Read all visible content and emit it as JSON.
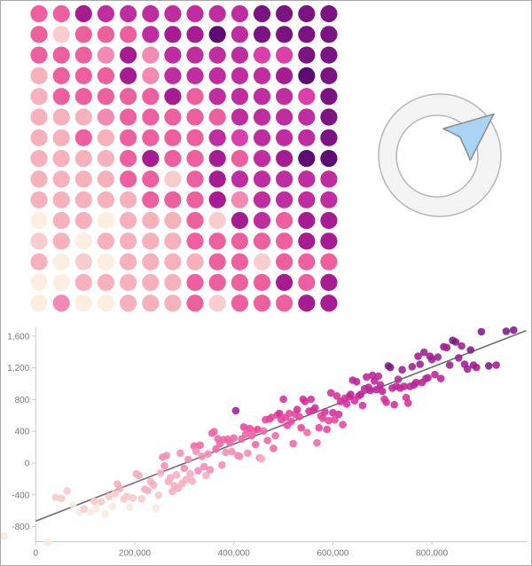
{
  "page": {
    "background": "#ffffff",
    "border_color": "#a9a9a9"
  },
  "compass_icon": {
    "name": "compass-arrow-icon",
    "ring_fill": "#f4f4f4",
    "ring_stroke": "#b9b9b9",
    "inner_fill": "#ffffff",
    "arrow_fill": "#aad4f4",
    "arrow_stroke": "#8f8f8f"
  },
  "chart_data": [
    {
      "type": "heatmap",
      "subtype": "dot-grid",
      "title": "",
      "rows": 15,
      "cols": 14,
      "legend": false,
      "grid": false,
      "layout_hint": "14x15 grid of colored dots; values increase from bottom-left (lightest pink) to top-right (darkest purple)",
      "palette": [
        "#fdeee2",
        "#f9cdcd",
        "#f6b1bd",
        "#f28ab3",
        "#ee5f9e",
        "#db3fa9",
        "#c02da1",
        "#a81c93",
        "#7c1383",
        "#5d0d71"
      ],
      "matrix": [
        [
          4,
          4,
          7,
          6,
          6,
          6,
          6,
          6,
          6,
          6,
          8,
          8,
          8,
          8
        ],
        [
          4,
          1,
          4,
          4,
          4,
          6,
          7,
          7,
          9,
          6,
          8,
          8,
          8,
          8
        ],
        [
          4,
          4,
          4,
          3,
          7,
          3,
          6,
          6,
          6,
          6,
          5,
          5,
          8,
          8
        ],
        [
          2,
          4,
          4,
          4,
          7,
          3,
          6,
          6,
          6,
          6,
          6,
          7,
          9,
          8
        ],
        [
          2,
          4,
          4,
          4,
          4,
          4,
          7,
          4,
          6,
          6,
          6,
          6,
          5,
          8
        ],
        [
          2,
          2,
          2,
          3,
          4,
          4,
          4,
          4,
          4,
          6,
          6,
          6,
          6,
          8
        ],
        [
          2,
          2,
          4,
          2,
          4,
          4,
          4,
          4,
          6,
          5,
          6,
          6,
          6,
          8
        ],
        [
          2,
          2,
          2,
          2,
          4,
          7,
          4,
          4,
          7,
          4,
          6,
          7,
          9,
          9
        ],
        [
          2,
          2,
          2,
          2,
          4,
          4,
          1,
          4,
          7,
          6,
          6,
          6,
          6,
          6
        ],
        [
          2,
          2,
          2,
          2,
          2,
          4,
          4,
          4,
          7,
          3,
          6,
          6,
          6,
          6
        ],
        [
          0,
          2,
          2,
          0,
          2,
          2,
          2,
          4,
          1,
          7,
          6,
          4,
          7,
          7
        ],
        [
          1,
          2,
          0,
          2,
          2,
          2,
          2,
          4,
          4,
          4,
          4,
          4,
          7,
          7
        ],
        [
          2,
          0,
          1,
          0,
          2,
          2,
          2,
          2,
          4,
          4,
          1,
          4,
          4,
          4
        ],
        [
          0,
          0,
          2,
          2,
          2,
          2,
          2,
          4,
          4,
          4,
          4,
          7,
          4,
          7
        ],
        [
          0,
          3,
          0,
          0,
          2,
          2,
          2,
          4,
          1,
          4,
          4,
          4,
          7,
          7
        ]
      ]
    },
    {
      "type": "scatter",
      "title": "",
      "xlabel": "",
      "ylabel": "",
      "legend": false,
      "grid": false,
      "x_tick_labels": [
        "0",
        "200,000",
        "400,000",
        "600,000",
        "800,000"
      ],
      "x_tick_values": [
        0,
        200000,
        400000,
        600000,
        800000
      ],
      "y_tick_labels": [
        "1,600",
        "1,200",
        "800",
        "400",
        "0",
        "-400",
        "-800"
      ],
      "y_tick_values": [
        1600,
        1200,
        800,
        400,
        0,
        -400,
        -800
      ],
      "xlim": [
        -70000,
        990000
      ],
      "ylim": [
        -990,
        1750
      ],
      "axis_color": "#c9c9c9",
      "label_color": "#777777",
      "trend_line": {
        "x1": 0,
        "y1": -730,
        "x2": 990000,
        "y2": 1668,
        "color": "#6d6d6d"
      },
      "palette": [
        "#fce8e0",
        "#f9c8ca",
        "#f6adbe",
        "#f28db4",
        "#ee67a4",
        "#e7469b",
        "#d5309c",
        "#bb2497",
        "#9e1d90",
        "#7c1a88"
      ],
      "points": [
        [
          -64000,
          -920,
          0
        ],
        [
          24000,
          -1000,
          0
        ],
        [
          40000,
          -430,
          1
        ],
        [
          52000,
          -445,
          1
        ],
        [
          63000,
          -350,
          1
        ],
        [
          75000,
          -525,
          0
        ],
        [
          88000,
          -618,
          0
        ],
        [
          98000,
          -578,
          1
        ],
        [
          110000,
          -612,
          0
        ],
        [
          118000,
          -480,
          1
        ],
        [
          122000,
          -575,
          0
        ],
        [
          132000,
          -488,
          1
        ],
        [
          140000,
          -640,
          0
        ],
        [
          148000,
          -422,
          1
        ],
        [
          155000,
          -545,
          0
        ],
        [
          160000,
          -385,
          1
        ],
        [
          165000,
          -265,
          2
        ],
        [
          170000,
          -318,
          2
        ],
        [
          178000,
          -452,
          1
        ],
        [
          184000,
          -420,
          1
        ],
        [
          190000,
          -555,
          0
        ],
        [
          196000,
          -440,
          1
        ],
        [
          203000,
          -135,
          2
        ],
        [
          208000,
          -158,
          2
        ],
        [
          214000,
          -450,
          1
        ],
        [
          220000,
          -330,
          2
        ],
        [
          226000,
          -345,
          2
        ],
        [
          232000,
          -235,
          2
        ],
        [
          238000,
          -276,
          2
        ],
        [
          243000,
          -565,
          0
        ],
        [
          248000,
          -405,
          1
        ],
        [
          252000,
          -125,
          2
        ],
        [
          256000,
          75,
          3
        ],
        [
          260000,
          -35,
          3
        ],
        [
          264000,
          95,
          3
        ],
        [
          268000,
          -230,
          2
        ],
        [
          272000,
          -186,
          2
        ],
        [
          276000,
          -356,
          2
        ],
        [
          280000,
          -285,
          2
        ],
        [
          284000,
          -147,
          2
        ],
        [
          288000,
          -315,
          2
        ],
        [
          292000,
          125,
          3
        ],
        [
          296000,
          -255,
          2
        ],
        [
          300000,
          -65,
          3
        ],
        [
          304000,
          -206,
          2
        ],
        [
          308000,
          45,
          3
        ],
        [
          312000,
          -135,
          2
        ],
        [
          316000,
          -226,
          2
        ],
        [
          320000,
          215,
          4
        ],
        [
          324000,
          146,
          3
        ],
        [
          328000,
          -95,
          3
        ],
        [
          332000,
          226,
          4
        ],
        [
          336000,
          85,
          3
        ],
        [
          340000,
          -45,
          3
        ],
        [
          344000,
          -156,
          2
        ],
        [
          348000,
          115,
          3
        ],
        [
          352000,
          -85,
          3
        ],
        [
          356000,
          376,
          4
        ],
        [
          360000,
          396,
          4
        ],
        [
          364000,
          176,
          4
        ],
        [
          368000,
          306,
          4
        ],
        [
          372000,
          245,
          4
        ],
        [
          376000,
          -25,
          3
        ],
        [
          380000,
          296,
          4
        ],
        [
          384000,
          135,
          3
        ],
        [
          388000,
          302,
          4
        ],
        [
          392000,
          255,
          4
        ],
        [
          396000,
          145,
          3
        ],
        [
          400000,
          315,
          4
        ],
        [
          404000,
          660,
          8
        ],
        [
          408000,
          95,
          3
        ],
        [
          412000,
          85,
          3
        ],
        [
          416000,
          305,
          4
        ],
        [
          420000,
          455,
          5
        ],
        [
          424000,
          365,
          4
        ],
        [
          428000,
          125,
          3
        ],
        [
          432000,
          435,
          5
        ],
        [
          436000,
          345,
          4
        ],
        [
          440000,
          405,
          4
        ],
        [
          444000,
          235,
          4
        ],
        [
          448000,
          425,
          5
        ],
        [
          452000,
          65,
          3
        ],
        [
          456000,
          55,
          2
        ],
        [
          460000,
          405,
          4
        ],
        [
          464000,
          545,
          5
        ],
        [
          468000,
          285,
          4
        ],
        [
          472000,
          555,
          5
        ],
        [
          476000,
          575,
          5
        ],
        [
          480000,
          185,
          4
        ],
        [
          484000,
          345,
          4
        ],
        [
          488000,
          605,
          5
        ],
        [
          492000,
          625,
          6
        ],
        [
          496000,
          545,
          5
        ],
        [
          500000,
          805,
          6
        ],
        [
          504000,
          575,
          5
        ],
        [
          508000,
          475,
          5
        ],
        [
          512000,
          625,
          5
        ],
        [
          516000,
          525,
          5
        ],
        [
          520000,
          245,
          4
        ],
        [
          524000,
          615,
          5
        ],
        [
          528000,
          675,
          6
        ],
        [
          532000,
          585,
          5
        ],
        [
          536000,
          445,
          5
        ],
        [
          540000,
          805,
          6
        ],
        [
          544000,
          775,
          6
        ],
        [
          548000,
          385,
          4
        ],
        [
          552000,
          655,
          6
        ],
        [
          556000,
          805,
          6
        ],
        [
          560000,
          665,
          6
        ],
        [
          564000,
          695,
          6
        ],
        [
          568000,
          255,
          4
        ],
        [
          572000,
          445,
          5
        ],
        [
          576000,
          595,
          5
        ],
        [
          580000,
          565,
          5
        ],
        [
          584000,
          645,
          6
        ],
        [
          588000,
          425,
          5
        ],
        [
          592000,
          535,
          5
        ],
        [
          596000,
          885,
          6
        ],
        [
          600000,
          635,
          6
        ],
        [
          604000,
          545,
          5
        ],
        [
          608000,
          845,
          6
        ],
        [
          612000,
          615,
          6
        ],
        [
          616000,
          775,
          6
        ],
        [
          620000,
          485,
          5
        ],
        [
          624000,
          815,
          6
        ],
        [
          628000,
          745,
          6
        ],
        [
          632000,
          835,
          6
        ],
        [
          636000,
          865,
          7
        ],
        [
          640000,
          1045,
          7
        ],
        [
          644000,
          785,
          6
        ],
        [
          648000,
          1025,
          7
        ],
        [
          652000,
          845,
          6
        ],
        [
          656000,
          865,
          7
        ],
        [
          660000,
          725,
          6
        ],
        [
          664000,
          935,
          7
        ],
        [
          668000,
          1085,
          7
        ],
        [
          672000,
          955,
          7
        ],
        [
          676000,
          915,
          7
        ],
        [
          680000,
          1105,
          7
        ],
        [
          684000,
          1035,
          7
        ],
        [
          688000,
          925,
          7
        ],
        [
          692000,
          1095,
          7
        ],
        [
          696000,
          985,
          7
        ],
        [
          700000,
          905,
          7
        ],
        [
          704000,
          805,
          6
        ],
        [
          708000,
          765,
          6
        ],
        [
          712000,
          1225,
          9
        ],
        [
          716000,
          1205,
          9
        ],
        [
          720000,
          945,
          7
        ],
        [
          724000,
          735,
          6
        ],
        [
          728000,
          965,
          7
        ],
        [
          732000,
          1055,
          7
        ],
        [
          736000,
          945,
          7
        ],
        [
          740000,
          1175,
          8
        ],
        [
          744000,
          965,
          7
        ],
        [
          748000,
          825,
          6
        ],
        [
          752000,
          755,
          6
        ],
        [
          756000,
          965,
          7
        ],
        [
          760000,
          1215,
          8
        ],
        [
          764000,
          985,
          7
        ],
        [
          768000,
          1015,
          7
        ],
        [
          772000,
          1345,
          8
        ],
        [
          776000,
          1245,
          8
        ],
        [
          780000,
          1015,
          7
        ],
        [
          784000,
          1395,
          8
        ],
        [
          788000,
          1065,
          7
        ],
        [
          792000,
          1075,
          7
        ],
        [
          796000,
          1345,
          8
        ],
        [
          800000,
          1305,
          8
        ],
        [
          806000,
          1115,
          7
        ],
        [
          812000,
          1335,
          8
        ],
        [
          818000,
          1065,
          7
        ],
        [
          824000,
          1465,
          8
        ],
        [
          830000,
          1455,
          8
        ],
        [
          836000,
          1235,
          8
        ],
        [
          842000,
          1545,
          9
        ],
        [
          848000,
          1525,
          9
        ],
        [
          854000,
          1325,
          8
        ],
        [
          860000,
          1475,
          8
        ],
        [
          866000,
          1245,
          8
        ],
        [
          872000,
          1185,
          8
        ],
        [
          878000,
          1425,
          9
        ],
        [
          884000,
          1235,
          8
        ],
        [
          890000,
          1205,
          8
        ],
        [
          900000,
          1655,
          9
        ],
        [
          915000,
          1225,
          9
        ],
        [
          930000,
          1235,
          8
        ],
        [
          950000,
          1660,
          9
        ],
        [
          965000,
          1675,
          9
        ]
      ]
    }
  ]
}
